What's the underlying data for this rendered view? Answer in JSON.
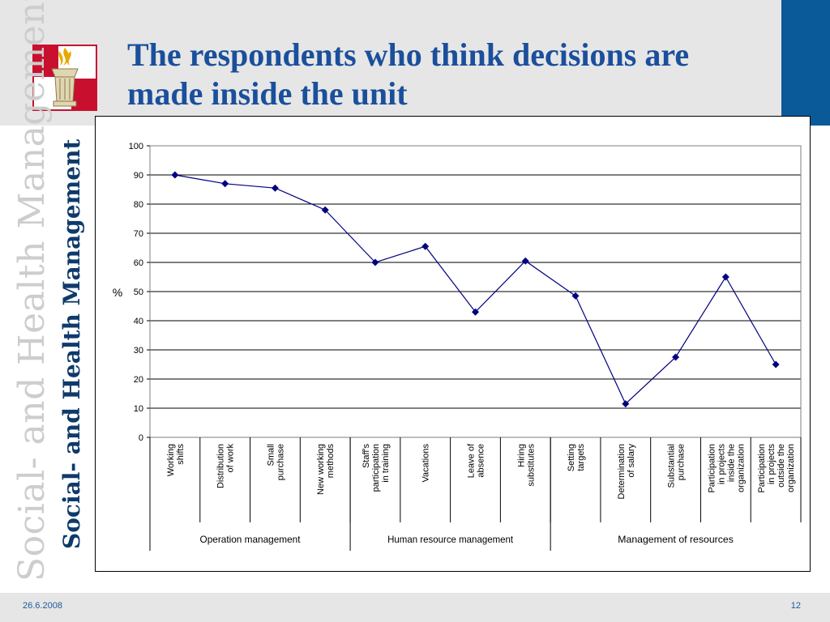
{
  "slide": {
    "title": "The respondents who think decisions are made inside the unit",
    "side_text": "Social- and Health Management",
    "date": "26.6.2008",
    "page_number": "12"
  },
  "colors": {
    "title": "#1a4f9c",
    "accent_block": "#0a5a9a",
    "line": "#000080"
  },
  "chart_data": {
    "type": "line",
    "ylabel": "%",
    "ylim": [
      0,
      100
    ],
    "yticks": [
      0,
      10,
      20,
      30,
      40,
      50,
      60,
      70,
      80,
      90,
      100
    ],
    "grid": true,
    "categories": [
      "Working shifts",
      "Distribution of work",
      "Small purchase",
      "New working methods",
      "Staff's participation in training",
      "Vacations",
      "Leave of absence",
      "Hiring substitutes",
      "Setting targets",
      "Determination of salary",
      "Substantial purchase",
      "Participation in projects inside the organization",
      "Participation in projects outside the organization"
    ],
    "category_label_lines": [
      [
        "Working",
        "shifts"
      ],
      [
        "Distribution",
        "of work"
      ],
      [
        "Small",
        "purchase"
      ],
      [
        "New working",
        "methods"
      ],
      [
        "Staff's",
        "participation",
        "in training"
      ],
      [
        "Vacations"
      ],
      [
        "Leave of",
        "absence"
      ],
      [
        "Hiring",
        "substitutes"
      ],
      [
        "Setting",
        "targets"
      ],
      [
        "Determination",
        "of salary"
      ],
      [
        "Substantial",
        "purchase"
      ],
      [
        "Participation",
        "in projects",
        "inside the",
        "organization"
      ],
      [
        "Participation",
        "in projects",
        "outside the",
        "organization"
      ]
    ],
    "groups": [
      {
        "label": "Operation management",
        "count": 4
      },
      {
        "label": "Human resource management",
        "count": 4
      },
      {
        "label": "Management of resources",
        "count": 5
      }
    ],
    "values": [
      90,
      87,
      85.5,
      78,
      60,
      65.5,
      43,
      60.5,
      48.5,
      11.5,
      27.5,
      55,
      25
    ]
  }
}
